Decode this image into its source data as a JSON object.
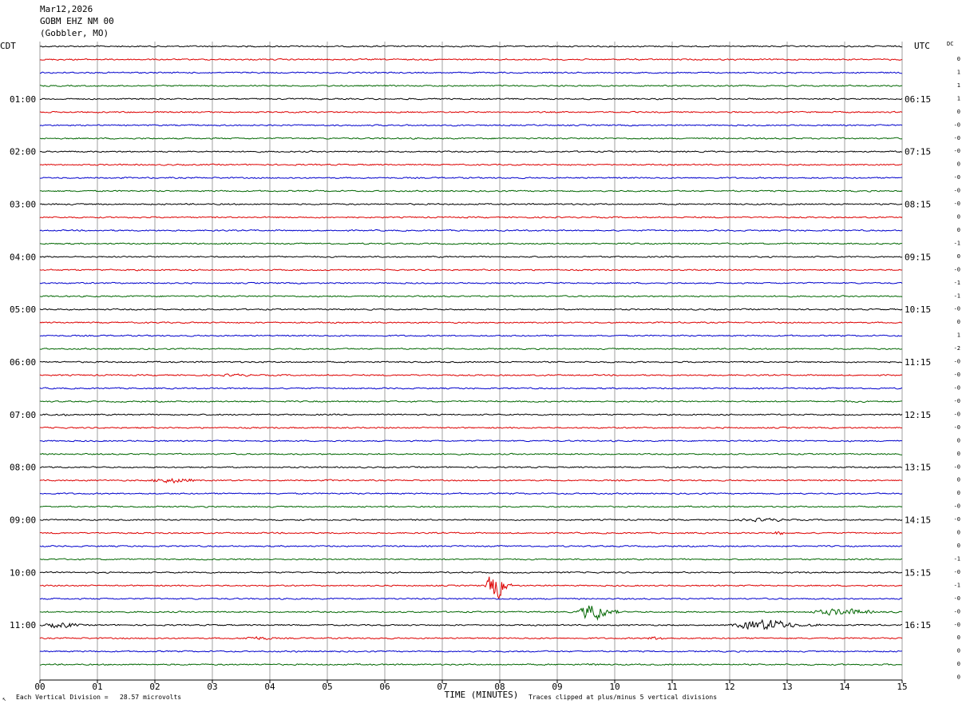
{
  "header": {
    "date": "Mar12,2026",
    "station": "GOBM EHZ NM 00",
    "location": "(Gobbler, MO)"
  },
  "labels": {
    "left_tz": "CDT",
    "right_tz": "UTC",
    "dc_label": "DC"
  },
  "footer": {
    "vertical_division": "Each Vertical Division =   28.57 microvolts",
    "xlabel": "TIME (MINUTES)",
    "clip_note": "Traces clipped at plus/minus 5 vertical divisions",
    "corner_mark": "↖"
  },
  "colors": {
    "cycle": [
      "#000000",
      "#dd0000",
      "#0000cc",
      "#006600"
    ],
    "grid": "#888888"
  },
  "chart_data": {
    "type": "line",
    "title": "",
    "xlabel": "TIME (MINUTES)",
    "xlim": [
      0,
      15
    ],
    "x_ticks": [
      "00",
      "01",
      "02",
      "03",
      "04",
      "05",
      "06",
      "07",
      "08",
      "09",
      "10",
      "11",
      "12",
      "13",
      "14",
      "15"
    ],
    "rows_per_hour": 4,
    "row_count": 48,
    "left_hour_labels": [
      "01:00",
      "02:00",
      "03:00",
      "04:00",
      "05:00",
      "06:00",
      "07:00",
      "08:00",
      "09:00",
      "10:00",
      "11:00"
    ],
    "right_hour_labels": [
      "06:15",
      "07:15",
      "08:15",
      "09:15",
      "10:15",
      "11:15",
      "12:15",
      "13:15",
      "14:15",
      "15:15",
      "16:15"
    ],
    "hour_label_rows": [
      4,
      8,
      12,
      16,
      20,
      24,
      28,
      32,
      36,
      40,
      44
    ],
    "dc_offsets": [
      "0",
      "1",
      "1",
      "1",
      "0",
      "-0",
      "-0",
      "-0",
      "0",
      "-0",
      "-0",
      "-0",
      "0",
      "0",
      "-1",
      "0",
      "-0",
      "-1",
      "-1",
      "-0",
      "0",
      "1",
      "-2",
      "-0",
      "-0",
      "-0",
      "-0",
      "-0",
      "-0",
      "0",
      "0",
      "-0",
      "0",
      "0",
      "-0",
      "-0",
      "0",
      "0",
      "-1",
      "-0",
      "-1",
      "-0",
      "-0",
      "-0",
      "0",
      "0",
      "0",
      "0"
    ],
    "events": [
      {
        "row": 25,
        "start": 3.0,
        "end": 4.1,
        "amp": 2.2
      },
      {
        "row": 27,
        "start": 13.5,
        "end": 15.0,
        "amp": 1.6
      },
      {
        "row": 28,
        "start": 0.0,
        "end": 1.0,
        "amp": 1.8
      },
      {
        "row": 33,
        "start": 1.8,
        "end": 3.1,
        "amp": 4.2
      },
      {
        "row": 33,
        "start": 4.9,
        "end": 5.3,
        "amp": 1.6
      },
      {
        "row": 36,
        "start": 12.0,
        "end": 13.6,
        "amp": 2.8
      },
      {
        "row": 37,
        "start": 12.7,
        "end": 13.2,
        "amp": 3.2
      },
      {
        "row": 41,
        "start": 7.75,
        "end": 8.2,
        "amp": 22
      },
      {
        "row": 43,
        "start": 9.35,
        "end": 10.1,
        "amp": 14
      },
      {
        "row": 43,
        "start": 13.3,
        "end": 15.0,
        "amp": 5.5
      },
      {
        "row": 44,
        "start": 0.0,
        "end": 1.0,
        "amp": 4.5
      },
      {
        "row": 44,
        "start": 12.0,
        "end": 13.6,
        "amp": 9
      },
      {
        "row": 45,
        "start": 3.4,
        "end": 4.4,
        "amp": 3.0
      },
      {
        "row": 45,
        "start": 10.5,
        "end": 11.1,
        "amp": 3.0
      },
      {
        "row": 46,
        "start": 4.3,
        "end": 4.7,
        "amp": 1.5
      },
      {
        "row": 47,
        "start": 9.5,
        "end": 9.8,
        "amp": 3.0
      }
    ]
  }
}
